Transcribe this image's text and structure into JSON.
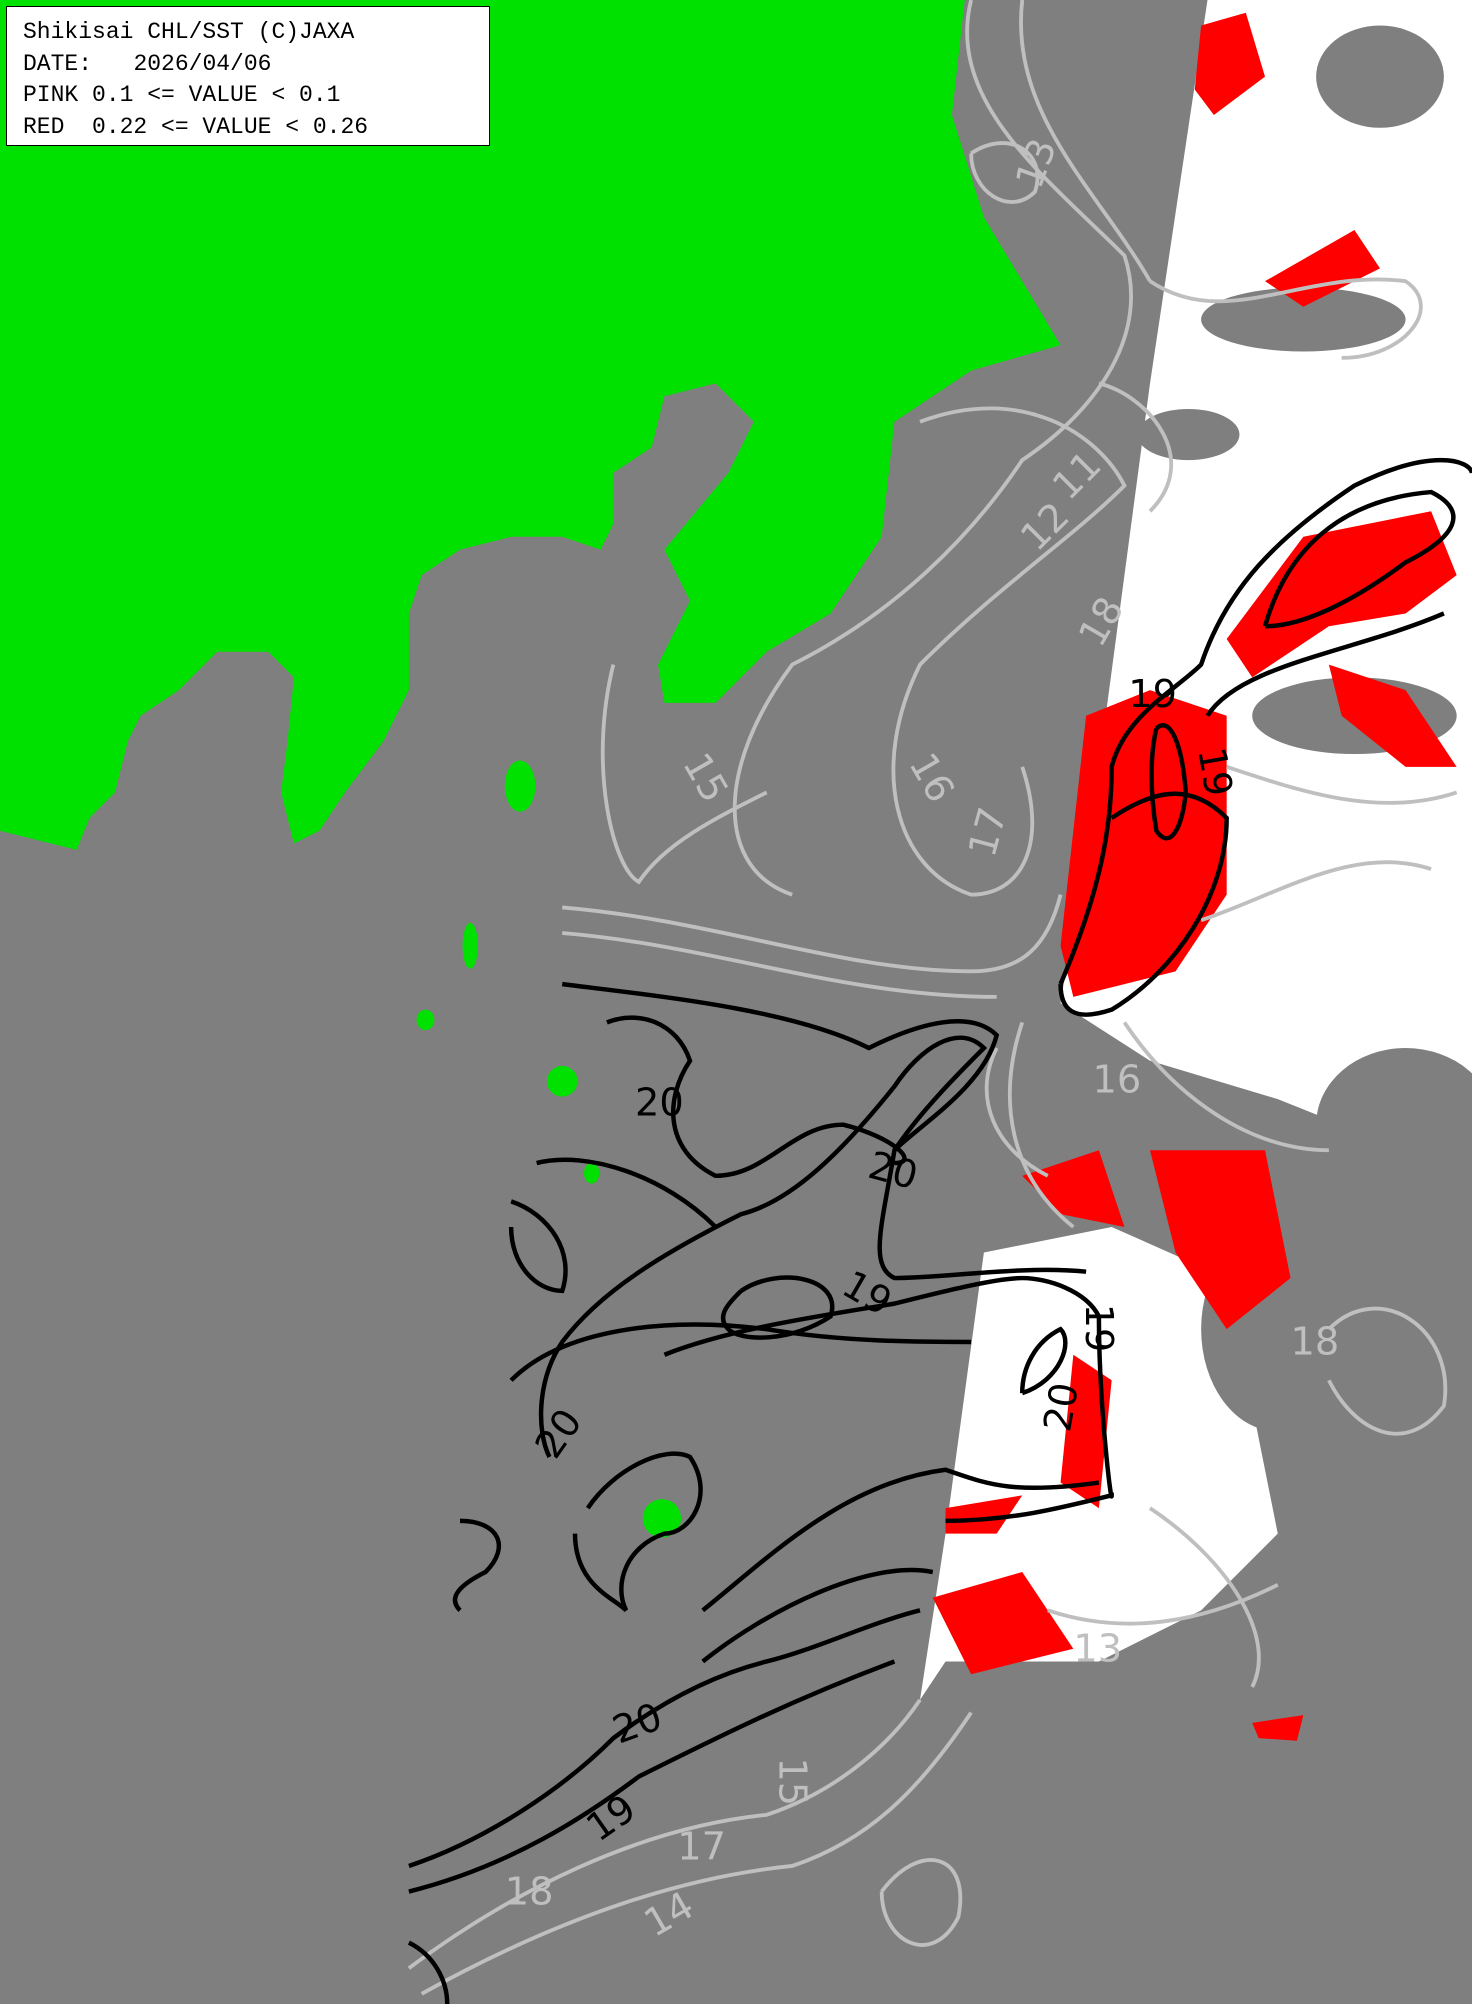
{
  "legend": {
    "title": "Shikisai CHL/SST (C)JAXA",
    "date_label": "DATE:",
    "date": "2026/04/06",
    "pink": "PINK 0.1 <= VALUE < 0.1",
    "red": "RED  0.22 <= VALUE < 0.26"
  },
  "colors": {
    "sea": "#7f7f7f",
    "land": "#00e100",
    "no_data": "#ffffff",
    "red_chl": "#ff0000",
    "contour_gray": "#bfbfbf",
    "contour_black": "#000000"
  },
  "contour_labels_gray": [
    "13",
    "11",
    "12",
    "18",
    "15",
    "16",
    "17",
    "16",
    "18",
    "15",
    "17",
    "14",
    "18",
    "13"
  ],
  "contour_labels_black": [
    "19",
    "19",
    "20",
    "20",
    "19",
    "19",
    "20",
    "20",
    "20",
    "19"
  ]
}
